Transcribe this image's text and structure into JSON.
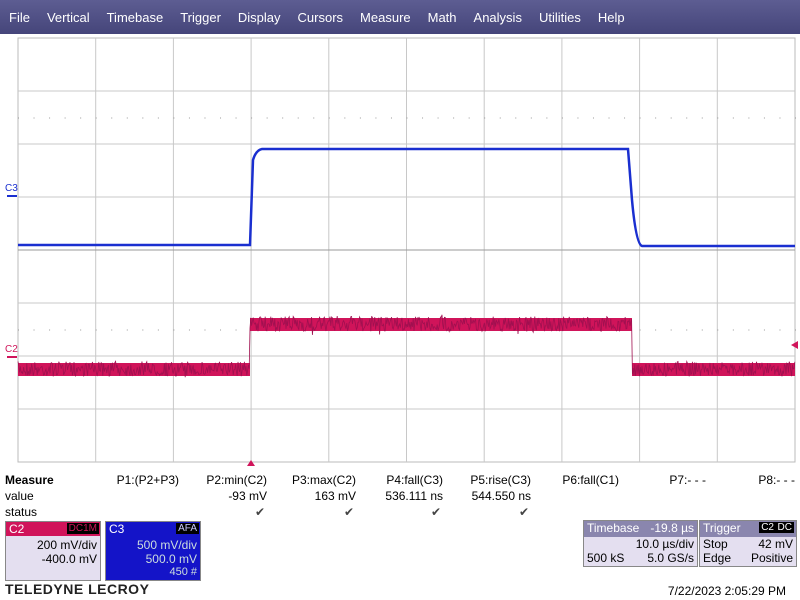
{
  "menu": {
    "items": [
      "File",
      "Vertical",
      "Timebase",
      "Trigger",
      "Display",
      "Cursors",
      "Measure",
      "Math",
      "Analysis",
      "Utilities",
      "Help"
    ]
  },
  "traces": {
    "c3_label": "C3",
    "c2_label": "C2"
  },
  "measure": {
    "title": "Measure",
    "row_labels": [
      "value",
      "status"
    ],
    "columns": [
      {
        "header": "P1:(P2+P3)"
      },
      {
        "header": "P2:min(C2)",
        "value": "-93 mV",
        "status": "✔"
      },
      {
        "header": "P3:max(C2)",
        "value": "163 mV",
        "status": "✔"
      },
      {
        "header": "P4:fall(C3)",
        "value": "536.111 ns",
        "status": "✔"
      },
      {
        "header": "P5:rise(C3)",
        "value": "544.550 ns",
        "status": "✔"
      },
      {
        "header": "P6:fall(C1)"
      },
      {
        "header": "P7:- - -"
      },
      {
        "header": "P8:- - -"
      }
    ]
  },
  "channels": {
    "c2": {
      "name": "C2",
      "coupling": "DC1M",
      "scale": "200 mV/div",
      "offset": "-400.0 mV"
    },
    "c3": {
      "name": "C3",
      "badge": "AFA",
      "scale": "500 mV/div",
      "offset": "500.0 mV",
      "extra": "450 #"
    }
  },
  "timebase": {
    "title": "Timebase",
    "delay": "-19.8 µs",
    "scale": "10.0 µs/div",
    "samples": "500 kS",
    "rate": "5.0 GS/s"
  },
  "trigger": {
    "title": "Trigger",
    "source": "C2",
    "coupling": "DC",
    "mode": "Stop",
    "level": "42 mV",
    "type": "Edge",
    "slope": "Positive"
  },
  "footer": {
    "brand": "TELEDYNE LECROY",
    "timestamp": "7/22/2023 2:05:29 PM"
  }
}
